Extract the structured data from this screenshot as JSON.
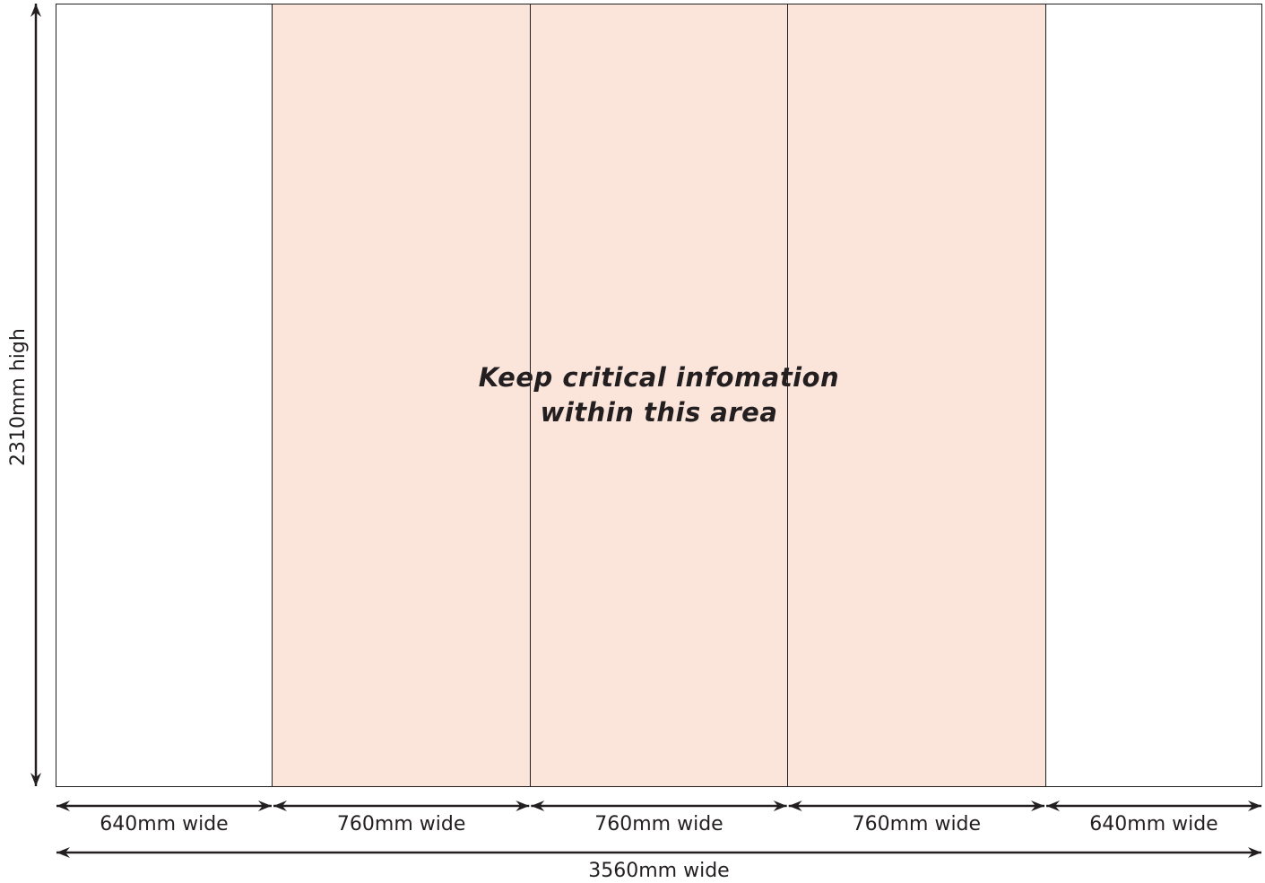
{
  "diagram": {
    "note_lines": [
      "Keep critical infomation",
      "within this area"
    ],
    "height_label": "2310mm high",
    "total_width_label": "3560mm wide",
    "panels": [
      {
        "label": "640mm wide",
        "width_mm": 640,
        "critical": false
      },
      {
        "label": "760mm wide",
        "width_mm": 760,
        "critical": true
      },
      {
        "label": "760mm wide",
        "width_mm": 760,
        "critical": true
      },
      {
        "label": "760mm wide",
        "width_mm": 760,
        "critical": true
      },
      {
        "label": "640mm wide",
        "width_mm": 640,
        "critical": false
      }
    ],
    "colors": {
      "critical_fill": "#fbe4da",
      "plain_fill": "#ffffff",
      "line": "#231f20"
    }
  }
}
